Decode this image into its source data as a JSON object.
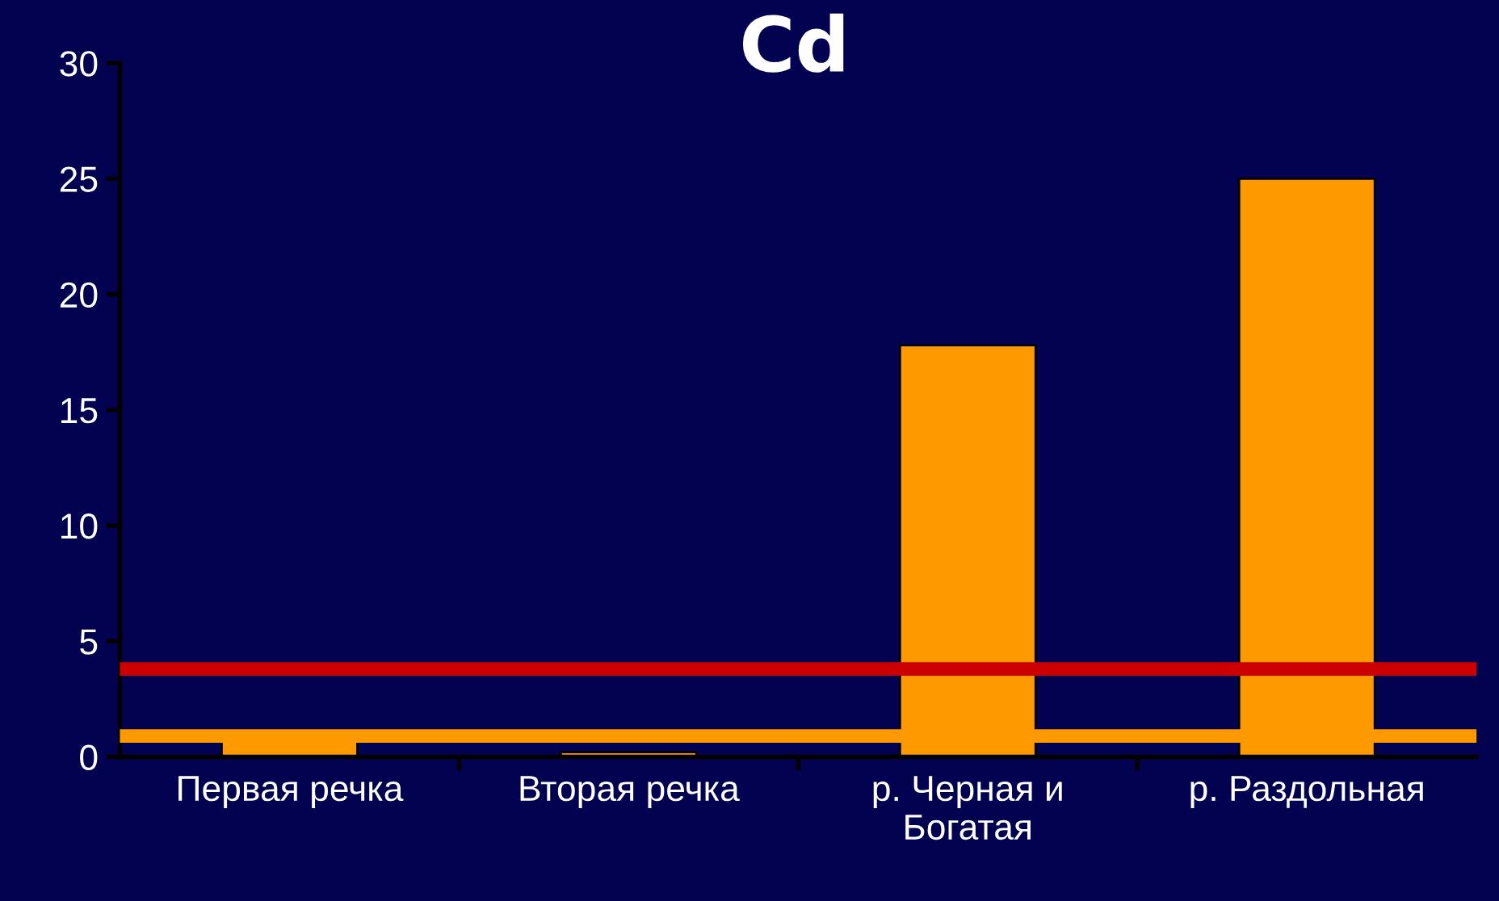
{
  "chart_data": {
    "type": "bar",
    "title": "Cd",
    "categories": [
      "Первая речка",
      "Вторая речка",
      "р. Черная и Богатая",
      "р. Раздольная"
    ],
    "values": [
      0.8,
      0.2,
      17.8,
      25
    ],
    "color": "#ff9900",
    "ylim": [
      0,
      30
    ],
    "yticks": [
      0,
      5,
      10,
      15,
      20,
      25,
      30
    ],
    "grid": false,
    "ref_lines": [
      {
        "axis": "y",
        "value": 3.8,
        "color": "#cc0000"
      },
      {
        "axis": "y",
        "value": 0.9,
        "color": "#ff9900"
      }
    ]
  }
}
